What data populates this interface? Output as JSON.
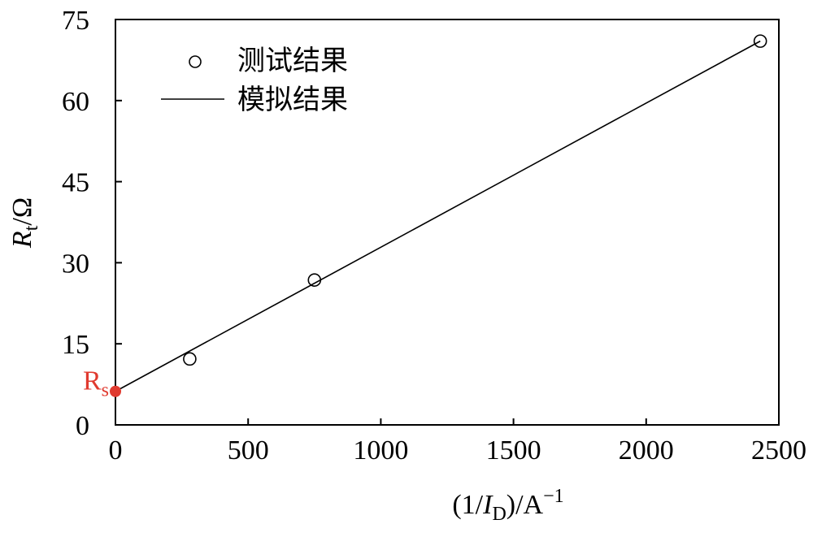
{
  "chart_data": {
    "type": "scatter",
    "title": "",
    "xlabel": {
      "prefix": "(1/",
      "var": "I",
      "sub": "D",
      "suffix": ")/A",
      "sup": "−1"
    },
    "ylabel": {
      "var": "R",
      "sub": "t",
      "suffix": "/Ω"
    },
    "xlim": [
      0,
      2500
    ],
    "ylim": [
      0,
      75
    ],
    "x_ticks": [
      0,
      500,
      1000,
      1500,
      2000,
      2500
    ],
    "y_ticks": [
      0,
      15,
      30,
      45,
      60,
      75
    ],
    "grid": false,
    "legend_position": "top-left",
    "series": [
      {
        "name": "测试结果",
        "kind": "markers",
        "marker": "open-circle",
        "x": [
          280,
          750,
          2430
        ],
        "y": [
          12.2,
          26.8,
          71
        ]
      },
      {
        "name": "模拟结果",
        "kind": "line",
        "x": [
          0,
          2430
        ],
        "y": [
          6.2,
          71
        ]
      }
    ],
    "annotations": [
      {
        "label": "R",
        "sub": "s",
        "x": 0,
        "y": 6.2,
        "color": "#e03a2f"
      }
    ]
  }
}
